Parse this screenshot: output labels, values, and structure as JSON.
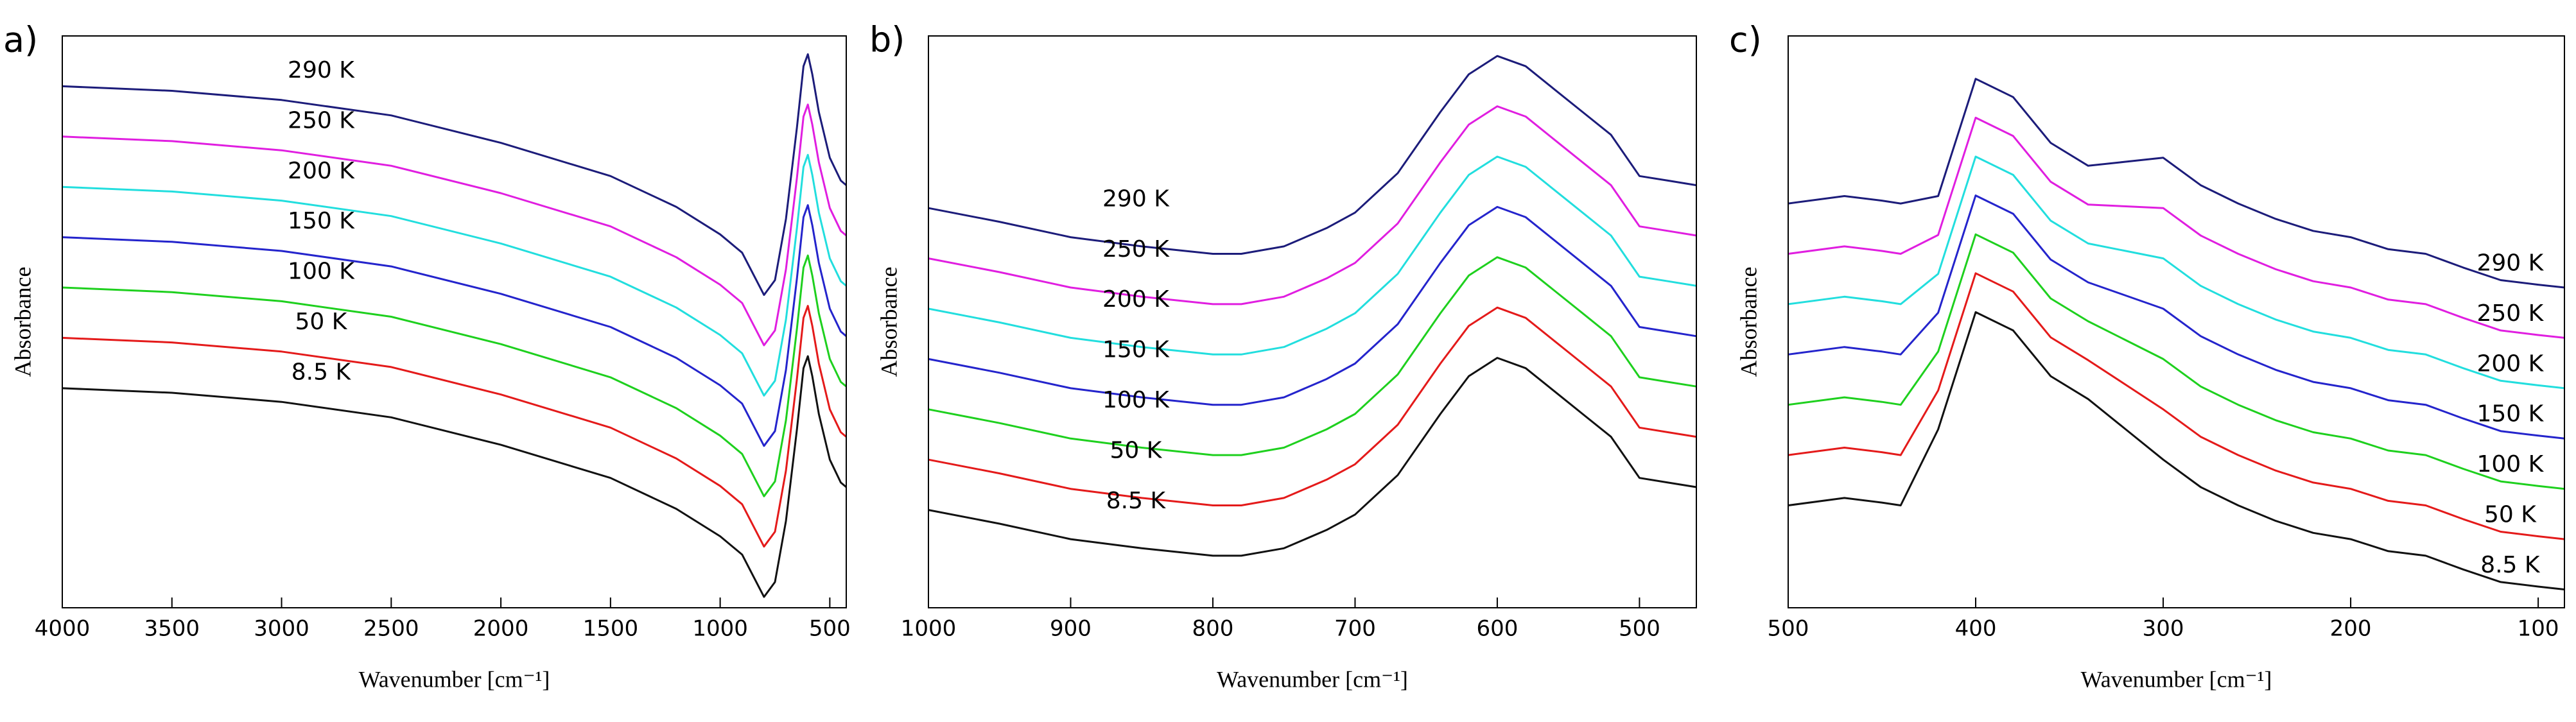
{
  "chart_data": [
    {
      "type": "line",
      "panel_label": "a)",
      "y_label": "Absorbance",
      "x_label": "Wavenumber [cm⁻¹]",
      "xlim": [
        4000,
        425
      ],
      "xticks": [
        4000,
        3500,
        3000,
        2500,
        2000,
        1500,
        1000,
        500
      ],
      "ylim": [
        0,
        100
      ],
      "x": [
        4000,
        3500,
        3000,
        2500,
        2000,
        1500,
        1200,
        1000,
        900,
        800,
        750,
        700,
        650,
        620,
        600,
        580,
        550,
        500,
        450,
        425
      ],
      "series": [
        {
          "name": "290 K",
          "color": "#1c1c7a",
          "values": [
            91.2,
            90.4,
            88.8,
            86.1,
            81.3,
            75.5,
            70.1,
            65.3,
            62.1,
            54.7,
            57.3,
            68.0,
            84.0,
            94.7,
            96.8,
            93.3,
            86.7,
            78.7,
            74.7,
            73.9
          ]
        },
        {
          "name": "250 K",
          "color": "#e01ee0",
          "values": [
            82.4,
            81.6,
            80.0,
            77.3,
            72.5,
            66.7,
            61.3,
            56.5,
            53.3,
            45.9,
            48.5,
            59.2,
            75.2,
            85.9,
            88.0,
            84.5,
            77.9,
            69.9,
            65.9,
            65.1
          ]
        },
        {
          "name": "200 K",
          "color": "#22dede",
          "values": [
            73.6,
            72.8,
            71.2,
            68.5,
            63.7,
            57.9,
            52.5,
            47.7,
            44.5,
            37.1,
            39.7,
            50.4,
            66.4,
            77.1,
            79.2,
            75.7,
            69.1,
            61.1,
            57.1,
            56.3
          ]
        },
        {
          "name": "150 K",
          "color": "#2424cc",
          "values": [
            64.8,
            64.0,
            62.4,
            59.7,
            54.9,
            49.1,
            43.7,
            38.9,
            35.7,
            28.3,
            30.9,
            41.6,
            57.6,
            68.3,
            70.4,
            66.9,
            60.3,
            52.3,
            48.3,
            47.5
          ]
        },
        {
          "name": "100 K",
          "color": "#1ed01e",
          "values": [
            56.0,
            55.2,
            53.6,
            50.9,
            46.1,
            40.3,
            34.9,
            30.1,
            26.9,
            19.5,
            22.1,
            32.8,
            48.8,
            59.5,
            61.6,
            58.1,
            51.5,
            43.5,
            39.5,
            38.7
          ]
        },
        {
          "name": "50 K",
          "color": "#e41a1a",
          "values": [
            47.2,
            46.4,
            44.8,
            42.1,
            37.3,
            31.5,
            26.1,
            21.3,
            18.1,
            10.7,
            13.3,
            24.0,
            40.0,
            50.7,
            52.8,
            49.3,
            42.7,
            34.7,
            30.7,
            29.9
          ]
        },
        {
          "name": "8.5 K",
          "color": "#111111",
          "values": [
            38.4,
            37.6,
            36.0,
            33.3,
            28.5,
            22.7,
            17.3,
            12.5,
            9.3,
            1.9,
            4.5,
            15.2,
            31.2,
            41.9,
            44.0,
            40.5,
            33.9,
            25.9,
            21.9,
            21.1
          ]
        }
      ]
    },
    {
      "type": "line",
      "panel_label": "b)",
      "y_label": "Absorbance",
      "x_label": "Wavenumber [cm⁻¹]",
      "xlim": [
        1000,
        460
      ],
      "xticks": [
        1000,
        900,
        800,
        700,
        600,
        500
      ],
      "ylim": [
        0,
        100
      ],
      "x": [
        1000,
        950,
        900,
        850,
        800,
        780,
        750,
        720,
        700,
        670,
        640,
        620,
        600,
        580,
        560,
        540,
        520,
        500,
        480,
        460
      ],
      "series": [
        {
          "name": "290 K",
          "color": "#1c1c7a",
          "values": [
            69.9,
            67.5,
            64.8,
            63.2,
            61.9,
            61.9,
            63.2,
            66.4,
            69.1,
            76.0,
            86.7,
            93.3,
            96.5,
            94.7,
            90.7,
            86.7,
            82.7,
            75.5,
            74.7,
            73.9
          ]
        },
        {
          "name": "250 K",
          "color": "#e01ee0",
          "values": [
            61.1,
            58.7,
            56.0,
            54.4,
            53.1,
            53.1,
            54.4,
            57.6,
            60.3,
            67.2,
            77.9,
            84.5,
            87.7,
            85.9,
            81.9,
            77.9,
            73.9,
            66.7,
            65.9,
            65.1
          ]
        },
        {
          "name": "200 K",
          "color": "#22dede",
          "values": [
            52.3,
            49.9,
            47.2,
            45.6,
            44.3,
            44.3,
            45.6,
            48.8,
            51.5,
            58.4,
            69.1,
            75.7,
            78.9,
            77.1,
            73.1,
            69.1,
            65.1,
            57.9,
            57.1,
            56.3
          ]
        },
        {
          "name": "150 K",
          "color": "#2424cc",
          "values": [
            43.5,
            41.1,
            38.4,
            36.8,
            35.5,
            35.5,
            36.8,
            40.0,
            42.7,
            49.6,
            60.3,
            66.9,
            70.1,
            68.3,
            64.3,
            60.3,
            56.3,
            49.1,
            48.3,
            47.5
          ]
        },
        {
          "name": "100 K",
          "color": "#1ed01e",
          "values": [
            34.7,
            32.3,
            29.6,
            28.0,
            26.7,
            26.7,
            28.0,
            31.2,
            33.9,
            40.8,
            51.5,
            58.1,
            61.3,
            59.5,
            55.5,
            51.5,
            47.5,
            40.3,
            39.5,
            38.7
          ]
        },
        {
          "name": "50 K",
          "color": "#e41a1a",
          "values": [
            25.9,
            23.5,
            20.8,
            19.2,
            17.9,
            17.9,
            19.2,
            22.4,
            25.1,
            32.0,
            42.7,
            49.3,
            52.5,
            50.7,
            46.7,
            42.7,
            38.7,
            31.5,
            30.7,
            29.9
          ]
        },
        {
          "name": "8.5 K",
          "color": "#111111",
          "values": [
            17.1,
            14.7,
            12.0,
            10.4,
            9.1,
            9.1,
            10.4,
            13.6,
            16.3,
            23.2,
            33.9,
            40.5,
            43.7,
            41.9,
            37.9,
            33.9,
            29.9,
            22.7,
            21.9,
            21.1
          ]
        }
      ]
    },
    {
      "type": "line",
      "panel_label": "c)",
      "y_label": "Absorbance",
      "x_label": "Wavenumber [cm⁻¹]",
      "xlim": [
        500,
        86
      ],
      "xticks": [
        500,
        400,
        300,
        200,
        100
      ],
      "ylim": [
        0,
        100
      ],
      "x": [
        500,
        470,
        450,
        440,
        420,
        400,
        380,
        360,
        340,
        320,
        300,
        280,
        260,
        240,
        220,
        200,
        180,
        160,
        140,
        120,
        100,
        86
      ],
      "series": [
        {
          "name": "290 K",
          "color": "#1c1c7a",
          "values": [
            70.7,
            72.0,
            71.2,
            70.7,
            72.0,
            92.5,
            89.3,
            81.3,
            77.3,
            78.0,
            78.7,
            73.9,
            70.7,
            68.0,
            65.9,
            64.8,
            62.7,
            61.9,
            59.5,
            57.3,
            56.5,
            56.0
          ]
        },
        {
          "name": "250 K",
          "color": "#e01ee0",
          "values": [
            61.9,
            63.2,
            62.4,
            61.9,
            65.2,
            85.7,
            82.5,
            74.5,
            70.5,
            70.2,
            69.9,
            65.1,
            61.9,
            59.2,
            57.1,
            56.0,
            53.9,
            53.1,
            50.7,
            48.5,
            47.7,
            47.2
          ]
        },
        {
          "name": "200 K",
          "color": "#22dede",
          "values": [
            53.1,
            54.4,
            53.6,
            53.1,
            58.4,
            78.9,
            75.7,
            67.7,
            63.7,
            62.4,
            61.1,
            56.3,
            53.1,
            50.4,
            48.3,
            47.2,
            45.1,
            44.3,
            41.9,
            39.7,
            38.9,
            38.4
          ]
        },
        {
          "name": "150 K",
          "color": "#2424cc",
          "values": [
            44.3,
            45.6,
            44.8,
            44.3,
            51.6,
            72.1,
            68.9,
            60.9,
            56.9,
            54.6,
            52.3,
            47.5,
            44.3,
            41.6,
            39.5,
            38.4,
            36.3,
            35.5,
            33.1,
            30.9,
            30.1,
            29.6
          ]
        },
        {
          "name": "100 K",
          "color": "#1ed01e",
          "values": [
            35.5,
            36.8,
            36.0,
            35.5,
            44.8,
            65.3,
            62.1,
            54.1,
            50.1,
            46.8,
            43.5,
            38.7,
            35.5,
            32.8,
            30.7,
            29.6,
            27.5,
            26.7,
            24.3,
            22.1,
            21.3,
            20.8
          ]
        },
        {
          "name": "50 K",
          "color": "#e41a1a",
          "values": [
            26.7,
            28.0,
            27.2,
            26.7,
            38.0,
            58.5,
            55.3,
            47.3,
            43.3,
            39.0,
            34.7,
            29.9,
            26.7,
            24.0,
            21.9,
            20.8,
            18.7,
            17.9,
            15.5,
            13.3,
            12.5,
            12.0
          ]
        },
        {
          "name": "8.5 K",
          "color": "#111111",
          "values": [
            17.9,
            19.2,
            18.4,
            17.9,
            31.2,
            51.7,
            48.5,
            40.5,
            36.5,
            31.2,
            25.9,
            21.1,
            17.9,
            15.2,
            13.1,
            12.0,
            9.9,
            9.1,
            6.7,
            4.5,
            3.7,
            3.2
          ]
        }
      ]
    }
  ]
}
